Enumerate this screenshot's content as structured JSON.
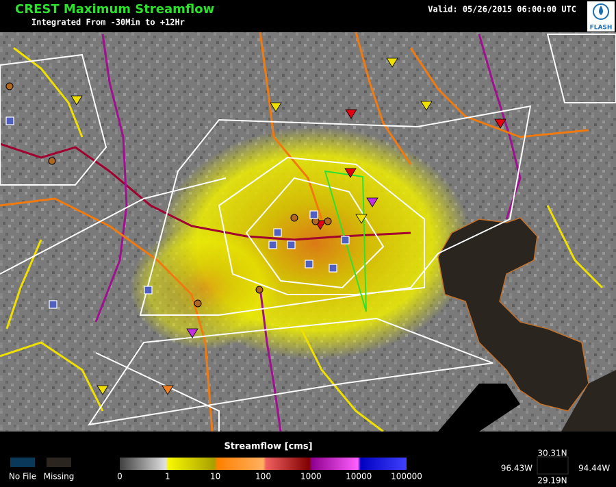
{
  "header": {
    "title": "CREST Maximum Streamflow",
    "subtitle": "Integrated From -30Min to +12Hr",
    "valid": "Valid: 05/26/2015 06:00:00 UTC",
    "logo": "FLASH"
  },
  "legend": {
    "title": "Streamflow [cms]",
    "ticks": [
      0,
      1,
      10,
      100,
      1000,
      10000,
      100000
    ],
    "no_file": "No File",
    "missing": "Missing"
  },
  "bounds": {
    "north": "30.31N",
    "south": "29.19N",
    "west": "96.43W",
    "east": "94.44W"
  }
}
